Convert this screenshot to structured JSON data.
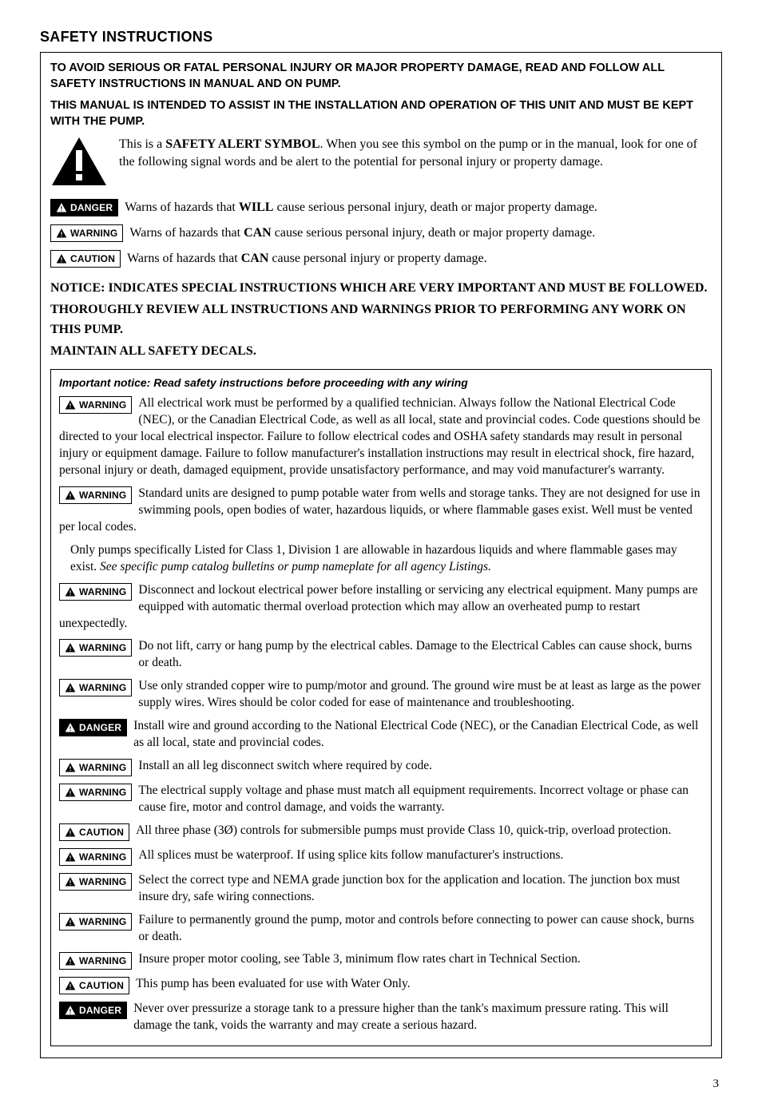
{
  "section_title": "SAFETY INSTRUCTIONS",
  "intro1": "TO AVOID SERIOUS OR FATAL PERSONAL INJURY OR MAJOR PROPERTY DAMAGE, READ AND FOLLOW ALL SAFETY INSTRUCTIONS IN MANUAL AND ON PUMP.",
  "intro2": "THIS MANUAL IS INTENDED TO ASSIST IN THE INSTALLATION AND OPERATION OF THIS UNIT AND MUST BE KEPT WITH THE PUMP.",
  "symbol_pre": "This is a ",
  "symbol_bold": "SAFETY ALERT SYMBOL",
  "symbol_post": ". When you see this symbol on the pump or in the manual, look for one of the following signal words and be alert to the potential for personal injury or property damage.",
  "labels": {
    "danger": "DANGER",
    "warning": "WARNING",
    "caution": "CAUTION"
  },
  "def_danger_pre": "Warns of hazards that ",
  "def_danger_bold": "WILL",
  "def_danger_post": " cause serious personal injury, death or major property damage.",
  "def_warning_pre": "Warns of hazards that ",
  "def_warning_bold": "CAN",
  "def_warning_post": " cause serious personal injury, death or major property damage.",
  "def_caution_pre": "Warns of hazards that ",
  "def_caution_bold": "CAN",
  "def_caution_post": " cause personal injury or property damage.",
  "notice1_pre": "NOTICE: ",
  "notice1": "INDICATES SPECIAL INSTRUCTIONS WHICH ARE VERY IMPORTANT AND MUST BE FOLLOWED.",
  "notice2": "THOROUGHLY REVIEW ALL INSTRUCTIONS AND WARNINGS PRIOR TO PERFORMING ANY WORK ON THIS PUMP.",
  "notice3": "MAINTAIN ALL SAFETY DECALS.",
  "subhead": "Important notice: Read safety instructions before proceeding with any wiring",
  "items": [
    {
      "label": "WARNING",
      "class": "",
      "text": "All electrical work must be performed by a qualified technician. Always follow the National Electrical Code (NEC), or the Canadian Electrical Code, as well as all local, state and provincial codes. Code questions should be directed to your local electrical inspector. Failure to follow electrical codes and OSHA safety standards may result in personal injury or equipment damage. Failure to follow manufacturer's installation instructions may result in electrical shock, fire hazard, personal injury or death, damaged equipment, provide unsatisfactory performance, and may void manufacturer's warranty."
    },
    {
      "label": "WARNING",
      "class": "",
      "text": "Standard units are designed to pump potable water from wells and storage tanks. They are not designed for use in swimming pools, open bodies of water, hazardous liquids, or where flammable gases exist. Well must be vented per local codes."
    },
    {
      "label": "",
      "class": "",
      "text": "Only pumps specifically Listed for Class 1, Division 1 are allowable in hazardous liquids and where flammable gases may exist. ",
      "ital": "See specific pump catalog bulletins or pump nameplate for all agency Listings."
    },
    {
      "label": "WARNING",
      "class": "",
      "text": "Disconnect and lockout electrical power before installing or servicing any electrical equipment. Many pumps are equipped with automatic thermal overload protection which may allow an overheated pump to restart unexpectedly."
    },
    {
      "label": "WARNING",
      "class": "",
      "text": "Do not lift, carry or hang pump by the electrical cables. Damage to the Electrical Cables can cause shock, burns or death."
    },
    {
      "label": "WARNING",
      "class": "",
      "text": "Use only stranded copper wire to pump/motor and ground. The ground wire must be at least as large as the power supply wires. Wires should be color coded for ease of maintenance and troubleshooting."
    },
    {
      "label": "DANGER",
      "class": "danger",
      "text": "Install wire and ground according to the National Electrical Code (NEC), or the Canadian Electrical Code, as well as all local, state and provincial codes."
    },
    {
      "label": "WARNING",
      "class": "",
      "text": "Install an all leg disconnect switch where required by code."
    },
    {
      "label": "WARNING",
      "class": "",
      "text": "The electrical supply voltage and phase must match all equipment requirements. Incorrect voltage or phase can cause fire, motor and control damage, and voids the warranty."
    },
    {
      "label": "CAUTION",
      "class": "",
      "text": "All three phase (3Ø) controls for submersible pumps must provide Class 10, quick-trip, overload protection."
    },
    {
      "label": "WARNING",
      "class": "",
      "text": "All splices must be waterproof. If using splice kits follow manufacturer's instructions."
    },
    {
      "label": "WARNING",
      "class": "",
      "text": "Select the correct type and NEMA grade junction box for the application and location. The junction box must insure dry, safe wiring connections."
    },
    {
      "label": "WARNING",
      "class": "",
      "text": "Failure to permanently ground the pump, motor and controls before connecting to power can cause shock, burns or death."
    },
    {
      "label": "WARNING",
      "class": "",
      "text": "Insure proper motor cooling, see Table 3, minimum flow rates chart in Technical Section."
    },
    {
      "label": "CAUTION",
      "class": "",
      "text": "This pump has been evaluated for use with Water Only."
    },
    {
      "label": "DANGER",
      "class": "danger",
      "text": "Never over pressurize a storage tank to a pressure higher than the tank's maximum pressure rating. This will damage the tank, voids the warranty and may create a serious hazard."
    }
  ],
  "page_number": "3"
}
